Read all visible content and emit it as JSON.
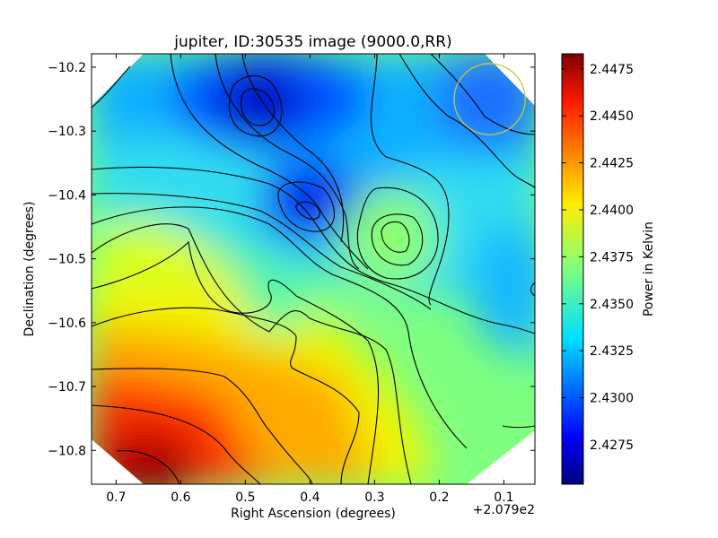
{
  "chart_data": {
    "type": "heatmap",
    "title": "jupiter, ID:30535 image (9000.0,RR)",
    "xlabel": "Right Ascension (degrees)",
    "ylabel": "Declination (degrees)",
    "x_offset_label": "+2.079e2",
    "x_ticks": [
      "0.7",
      "0.6",
      "0.5",
      "0.4",
      "0.3",
      "0.2",
      "0.1"
    ],
    "x_tick_values": [
      0.7,
      0.6,
      0.5,
      0.4,
      0.3,
      0.2,
      0.1
    ],
    "y_ticks": [
      "−10.2",
      "−10.3",
      "−10.4",
      "−10.5",
      "−10.6",
      "−10.7",
      "−10.8"
    ],
    "y_tick_values": [
      -10.2,
      -10.3,
      -10.4,
      -10.5,
      -10.6,
      -10.7,
      -10.8
    ],
    "xlim": [
      0.738,
      0.052
    ],
    "ylim": [
      -10.853,
      -10.179
    ],
    "colorbar": {
      "label": "Power in Kelvin",
      "ticks": [
        "2.4275",
        "2.4300",
        "2.4325",
        "2.4350",
        "2.4375",
        "2.4400",
        "2.4425",
        "2.4450",
        "2.4475"
      ],
      "tick_values": [
        2.4275,
        2.43,
        2.4325,
        2.435,
        2.4375,
        2.44,
        2.4425,
        2.445,
        2.4475
      ],
      "range": [
        2.4254,
        2.4483
      ],
      "colormap": "jet"
    },
    "beam": {
      "ra": 0.122,
      "dec": -10.25,
      "radius_deg": 0.055,
      "color": "#c8c83a"
    },
    "features": [
      {
        "kind": "minimum",
        "ra": 0.48,
        "dec": -10.27,
        "level": 2.4262
      },
      {
        "kind": "minimum",
        "ra": 0.4,
        "dec": -10.43,
        "level": 2.4268
      },
      {
        "kind": "local-maximum",
        "ra": 0.27,
        "dec": -10.46,
        "level": 2.4372
      },
      {
        "kind": "maximum",
        "ra": 0.63,
        "dec": -10.84,
        "level": 2.448
      }
    ]
  }
}
